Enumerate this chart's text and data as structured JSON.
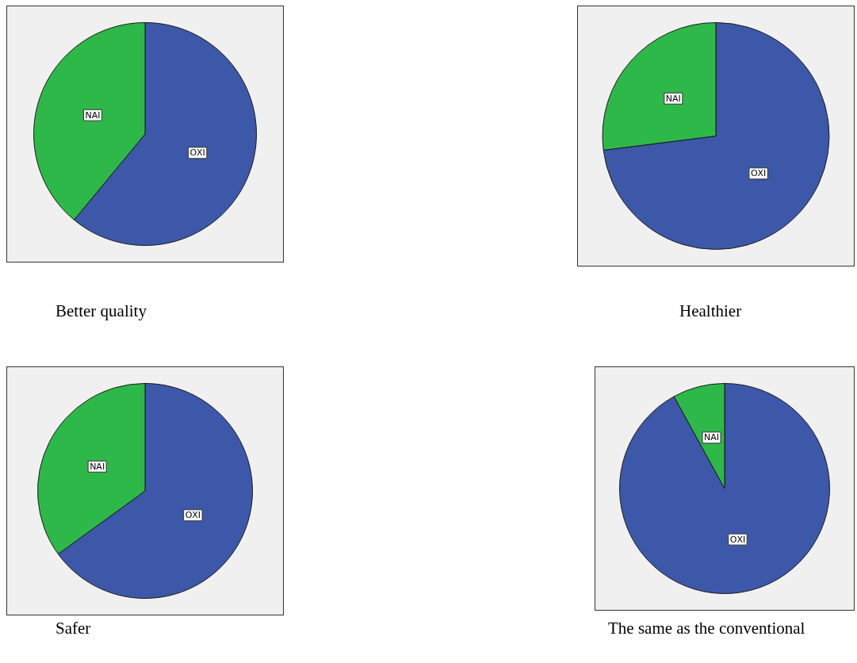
{
  "chart_data": [
    {
      "type": "pie",
      "title": "Better quality",
      "categories": [
        "ΟΧΙ",
        "ΝΑΙ"
      ],
      "values": [
        61,
        39
      ],
      "colors": [
        "#3d58a8",
        "#2fb84a"
      ],
      "legend": false
    },
    {
      "type": "pie",
      "title": "Healthier",
      "categories": [
        "ΟΧΙ",
        "ΝΑΙ"
      ],
      "values": [
        73,
        27
      ],
      "colors": [
        "#3d58a8",
        "#2fb84a"
      ],
      "legend": false
    },
    {
      "type": "pie",
      "title": "Safer",
      "categories": [
        "ΟΧΙ",
        "ΝΑΙ"
      ],
      "values": [
        65,
        35
      ],
      "colors": [
        "#3d58a8",
        "#2fb84a"
      ],
      "legend": false
    },
    {
      "type": "pie",
      "title": "The same as the conventional",
      "categories": [
        "ΟΧΙ",
        "ΝΑΙ"
      ],
      "values": [
        92,
        8
      ],
      "colors": [
        "#3d58a8",
        "#2fb84a"
      ],
      "legend": false
    }
  ]
}
